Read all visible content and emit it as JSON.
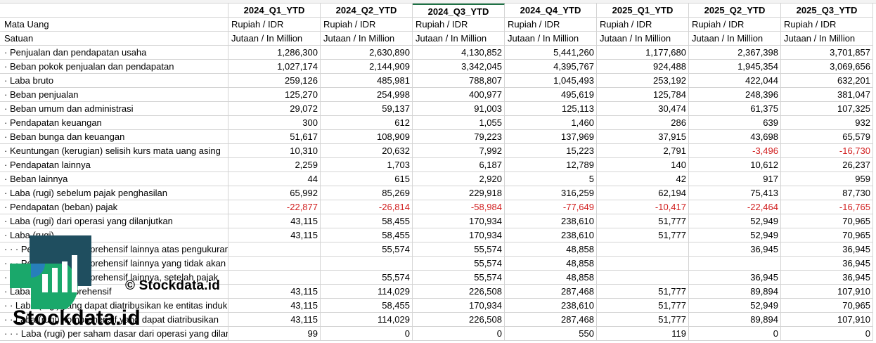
{
  "columns": [
    "2024_Q1_YTD",
    "2024_Q2_YTD",
    "2024_Q3_YTD",
    "2024_Q4_YTD",
    "2025_Q1_YTD",
    "2025_Q2_YTD",
    "2025_Q3_YTD"
  ],
  "currency_row": {
    "label": "Mata Uang",
    "values": [
      "Rupiah / IDR",
      "Rupiah / IDR",
      "Rupiah / IDR",
      "Rupiah / IDR",
      "Rupiah / IDR",
      "Rupiah / IDR",
      "Rupiah / IDR"
    ]
  },
  "unit_row": {
    "label": "Satuan",
    "values": [
      "Jutaan / In Million",
      "Jutaan / In Million",
      "Jutaan / In Million",
      "Jutaan / In Million",
      "Jutaan / In Million",
      "Jutaan / In Million",
      "Jutaan / In Million"
    ]
  },
  "rows": [
    {
      "label": "· Penjualan dan pendapatan usaha",
      "values": [
        "1,286,300",
        "2,630,890",
        "4,130,852",
        "5,441,260",
        "1,177,680",
        "2,367,398",
        "3,701,857"
      ]
    },
    {
      "label": "· Beban pokok penjualan dan pendapatan",
      "values": [
        "1,027,174",
        "2,144,909",
        "3,342,045",
        "4,395,767",
        "924,488",
        "1,945,354",
        "3,069,656"
      ]
    },
    {
      "label": "· Laba bruto",
      "values": [
        "259,126",
        "485,981",
        "788,807",
        "1,045,493",
        "253,192",
        "422,044",
        "632,201"
      ]
    },
    {
      "label": "· Beban penjualan",
      "values": [
        "125,270",
        "254,998",
        "400,977",
        "495,619",
        "125,784",
        "248,396",
        "381,047"
      ]
    },
    {
      "label": "· Beban umum dan administrasi",
      "values": [
        "29,072",
        "59,137",
        "91,003",
        "125,113",
        "30,474",
        "61,375",
        "107,325"
      ]
    },
    {
      "label": "· Pendapatan keuangan",
      "values": [
        "300",
        "612",
        "1,055",
        "1,460",
        "286",
        "639",
        "932"
      ]
    },
    {
      "label": "· Beban bunga dan keuangan",
      "values": [
        "51,617",
        "108,909",
        "79,223",
        "137,969",
        "37,915",
        "43,698",
        "65,579"
      ]
    },
    {
      "label": "· Keuntungan (kerugian) selisih kurs mata uang asing",
      "values": [
        "10,310",
        "20,632",
        "7,992",
        "15,223",
        "2,791",
        "-3,496",
        "-16,730"
      ]
    },
    {
      "label": "· Pendapatan lainnya",
      "values": [
        "2,259",
        "1,703",
        "6,187",
        "12,789",
        "140",
        "10,612",
        "26,237"
      ]
    },
    {
      "label": "· Beban lainnya",
      "values": [
        "44",
        "615",
        "2,920",
        "5",
        "42",
        "917",
        "959"
      ]
    },
    {
      "label": "· Laba (rugi) sebelum pajak penghasilan",
      "values": [
        "65,992",
        "85,269",
        "229,918",
        "316,259",
        "62,194",
        "75,413",
        "87,730"
      ]
    },
    {
      "label": "· Pendapatan (beban) pajak",
      "values": [
        "-22,877",
        "-26,814",
        "-58,984",
        "-77,649",
        "-10,417",
        "-22,464",
        "-16,765"
      ]
    },
    {
      "label": "· Laba (rugi) dari operasi yang dilanjutkan",
      "values": [
        "43,115",
        "58,455",
        "170,934",
        "238,610",
        "51,777",
        "52,949",
        "70,965"
      ]
    },
    {
      "label": "· Laba (rugi)",
      "values": [
        "43,115",
        "58,455",
        "170,934",
        "238,610",
        "51,777",
        "52,949",
        "70,965"
      ]
    },
    {
      "label": "· · · Pendapatan komprehensif lainnya atas pengukuran kembali kewajiban",
      "values": [
        "",
        "55,574",
        "55,574",
        "48,858",
        "",
        "36,945",
        "36,945"
      ]
    },
    {
      "label": "· · · Pendapatan komprehensif lainnya yang tidak akan direklasifikasi ke laba rugi, setelah pajak",
      "values": [
        "",
        "",
        "55,574",
        "48,858",
        "",
        "",
        "36,945"
      ]
    },
    {
      "label": "· · · Pendapatan komprehensif lainnya, setelah pajak",
      "values": [
        "",
        "55,574",
        "55,574",
        "48,858",
        "",
        "36,945",
        "36,945"
      ]
    },
    {
      "label": "· Laba (rugi) komprehensif",
      "values": [
        "43,115",
        "114,029",
        "226,508",
        "287,468",
        "51,777",
        "89,894",
        "107,910"
      ]
    },
    {
      "label": "· · Laba (rugi) yang dapat diatribusikan ke entitas induk",
      "values": [
        "43,115",
        "58,455",
        "170,934",
        "238,610",
        "51,777",
        "52,949",
        "70,965"
      ]
    },
    {
      "label": "· · Laba (rugi) komprehensif yang dapat diatribusikan",
      "values": [
        "43,115",
        "114,029",
        "226,508",
        "287,468",
        "51,777",
        "89,894",
        "107,910"
      ]
    },
    {
      "label": "· · · Laba (rugi) per saham dasar dari operasi yang dilanjutkan",
      "values": [
        "99",
        "0",
        "0",
        "550",
        "119",
        "0",
        "0"
      ]
    }
  ],
  "watermark": {
    "text": "© Stockdata.id",
    "brand": "Stockdata.id"
  },
  "colors": {
    "negative": "#d11f1f",
    "grid": "#d4d4d4",
    "logo_dark": "#1f4e5f",
    "logo_green": "#1aa86b",
    "logo_blue": "#2a78c8"
  }
}
